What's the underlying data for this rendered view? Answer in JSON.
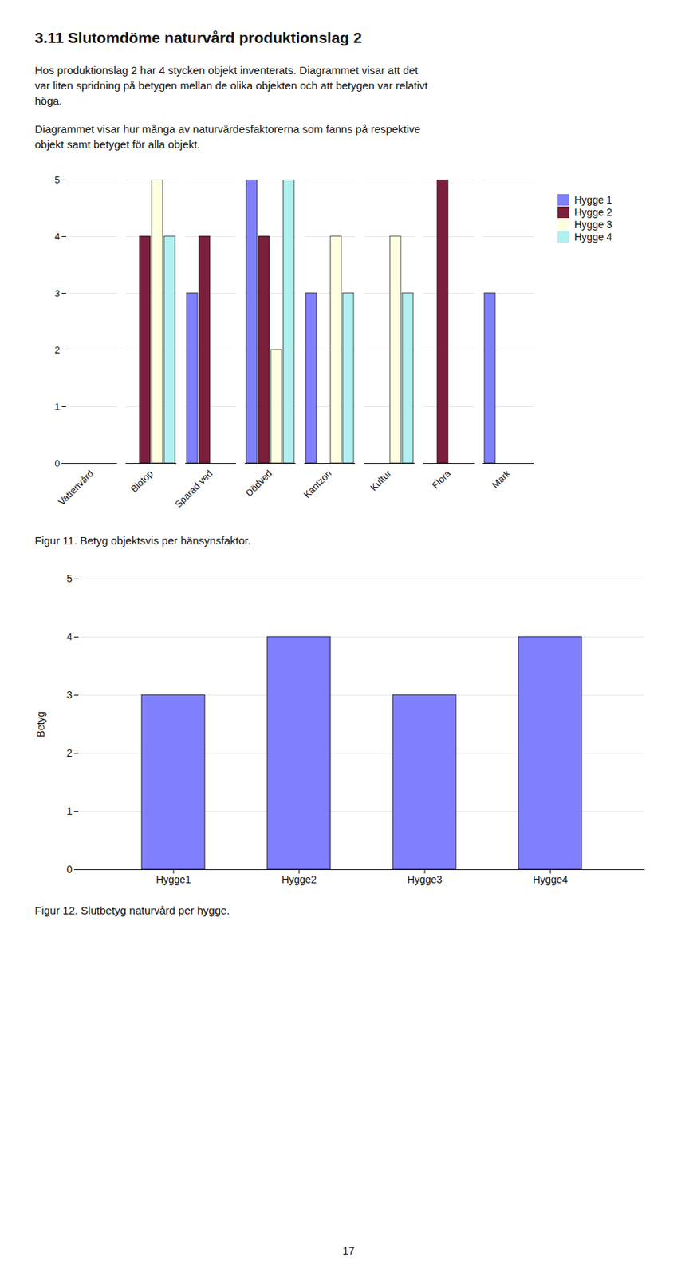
{
  "title": "3.11 Slutomdöme naturvård produktionslag 2",
  "annotations": [
    [
      "Hos produktionslag 2 har 4 stycken objekt inventerats. Diagrammet visar att det",
      "var liten spridning på betygen mellan de olika objekten och att betygen var relativt",
      "höga."
    ],
    [
      "Diagrammet visar hur många av naturvärdesfaktorerna som fanns på respektive",
      "objekt samt betyget för alla objekt."
    ],
    [
      "17"
    ]
  ],
  "chart_data": [
    {
      "type": "bar",
      "title": "Figur 11. Betyg objektsvis per hänsynsfaktor.",
      "categories": [
        "Vattenvård",
        "Biotop",
        "Sparad ved",
        "Dödved",
        "Kantzon",
        "Kultur",
        "Flora",
        "Mark"
      ],
      "series": [
        {
          "name": "Hygge 1",
          "color": "#8080FF",
          "values": [
            0,
            0,
            3,
            5,
            3,
            0,
            0,
            3
          ]
        },
        {
          "name": "Hygge 2",
          "color": "#7B1F3C",
          "values": [
            0,
            4,
            4,
            4,
            0,
            0,
            5,
            0
          ]
        },
        {
          "name": "Hygge 3",
          "color": "#FFFFE0",
          "values": [
            0,
            5,
            0,
            2,
            4,
            4,
            0,
            0
          ]
        },
        {
          "name": "Hygge 4",
          "color": "#B0F0F0",
          "values": [
            0,
            4,
            0,
            5,
            3,
            3,
            0,
            0
          ]
        }
      ],
      "ylim": [
        0,
        5
      ],
      "yticks": [
        0,
        1,
        2,
        3,
        4,
        5
      ],
      "grid": true,
      "legend": "right"
    },
    {
      "type": "bar",
      "title": "Figur 12. Slutbetyg naturvård per hygge.",
      "categories": [
        "Hygge1",
        "Hygge2",
        "Hygge3",
        "Hygge4"
      ],
      "values": [
        3,
        4,
        3,
        4
      ],
      "color": "#8080FF",
      "ylabel": "Betyg",
      "ylim": [
        0,
        5
      ],
      "yticks": [
        0,
        1,
        2,
        3,
        4,
        5
      ],
      "grid": true
    }
  ]
}
